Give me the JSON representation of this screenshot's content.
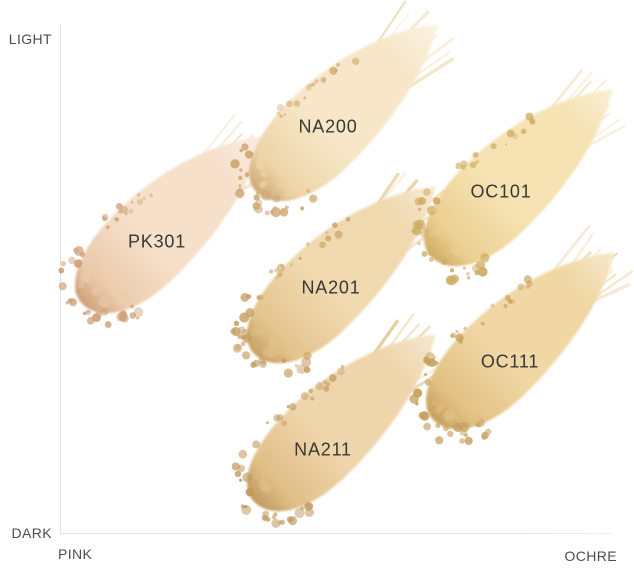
{
  "axes": {
    "y_top": "LIGHT",
    "y_bottom": "DARK",
    "x_left": "PINK",
    "x_right": "OCHRE"
  },
  "colors": {
    "background": "#ffffff",
    "axis_line": "#e3e3e3",
    "axis_label_text": "#4d4d4d",
    "shade_label_text": "#383838"
  },
  "swatches": [
    {
      "label": "PK301",
      "tone": {
        "center": "#f6e0ca",
        "mid": "#eccbac",
        "edge": "#cfa077"
      }
    },
    {
      "label": "NA200",
      "tone": {
        "center": "#f7e7c8",
        "mid": "#edd5a8",
        "edge": "#cfa874"
      }
    },
    {
      "label": "NA201",
      "tone": {
        "center": "#f0d8af",
        "mid": "#e4c48e",
        "edge": "#c79f63"
      }
    },
    {
      "label": "NA211",
      "tone": {
        "center": "#efd5ab",
        "mid": "#e0bf87",
        "edge": "#c09a5f"
      }
    },
    {
      "label": "OC101",
      "tone": {
        "center": "#f6e2b2",
        "mid": "#ebd092",
        "edge": "#cfad64"
      }
    },
    {
      "label": "OC111",
      "tone": {
        "center": "#f0d7a4",
        "mid": "#e2c184",
        "edge": "#c6a05c"
      }
    }
  ],
  "chart_data": {
    "type": "scatter",
    "title": "",
    "x_axis": {
      "left_label": "PINK",
      "right_label": "OCHRE",
      "range": [
        0,
        1
      ],
      "ticks": []
    },
    "y_axis": {
      "bottom_label": "DARK",
      "top_label": "LIGHT",
      "range": [
        0,
        1
      ],
      "ticks": []
    },
    "grid": false,
    "legend": false,
    "points": [
      {
        "label": "PK301",
        "x": 0.18,
        "y": 0.57,
        "swatch_color": "#eccbac"
      },
      {
        "label": "NA200",
        "x": 0.49,
        "y": 0.8,
        "swatch_color": "#edd5a8"
      },
      {
        "label": "NA201",
        "x": 0.49,
        "y": 0.48,
        "swatch_color": "#e4c48e"
      },
      {
        "label": "NA211",
        "x": 0.48,
        "y": 0.16,
        "swatch_color": "#e0bf87"
      },
      {
        "label": "OC101",
        "x": 0.8,
        "y": 0.67,
        "swatch_color": "#ebd092"
      },
      {
        "label": "OC111",
        "x": 0.81,
        "y": 0.34,
        "swatch_color": "#e2c184"
      }
    ]
  }
}
